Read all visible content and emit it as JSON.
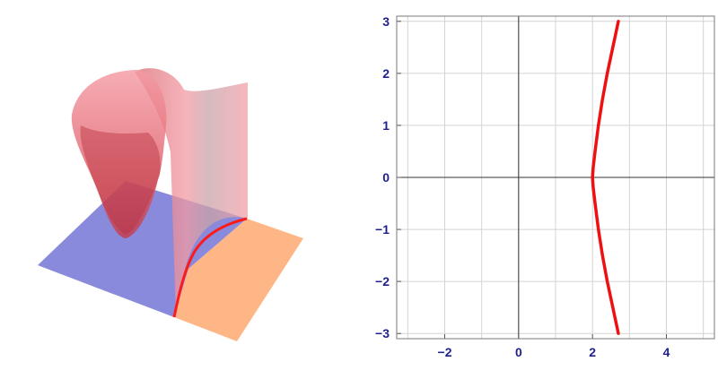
{
  "chart_data": [
    {
      "type": "surface-3d",
      "title": "",
      "plane_regions": [
        {
          "name": "",
          "color": "#7f80d8"
        },
        {
          "name": "",
          "color": "#ffb27f"
        }
      ],
      "surface_color": "#f08a94",
      "boundary_curve_color": "#ff1a1a",
      "axes_shown": false
    },
    {
      "type": "line",
      "title": "",
      "xlabel": "",
      "ylabel": "",
      "xlim": [
        -3.3,
        5.3
      ],
      "ylim": [
        -3.1,
        3.1
      ],
      "grid": true,
      "x_ticks": [
        -2,
        0,
        2,
        4
      ],
      "x_tick_labels": [
        "−2",
        "0",
        "2",
        "4"
      ],
      "y_ticks": [
        -3,
        -2,
        -1,
        0,
        1,
        2,
        3
      ],
      "y_tick_labels": [
        "−3",
        "−2",
        "−1",
        "0",
        "1",
        "2",
        "3"
      ],
      "series": [
        {
          "name": "",
          "color": "#ee1111",
          "x": [
            2.7,
            2.55,
            2.4,
            2.27,
            2.16,
            2.07,
            2.02,
            2.0,
            2.02,
            2.07,
            2.16,
            2.27,
            2.4,
            2.55,
            2.7
          ],
          "y": [
            -3.0,
            -2.5,
            -2.0,
            -1.5,
            -1.0,
            -0.5,
            -0.2,
            0.0,
            0.2,
            0.5,
            1.0,
            1.5,
            2.0,
            2.5,
            3.0
          ]
        }
      ]
    }
  ]
}
